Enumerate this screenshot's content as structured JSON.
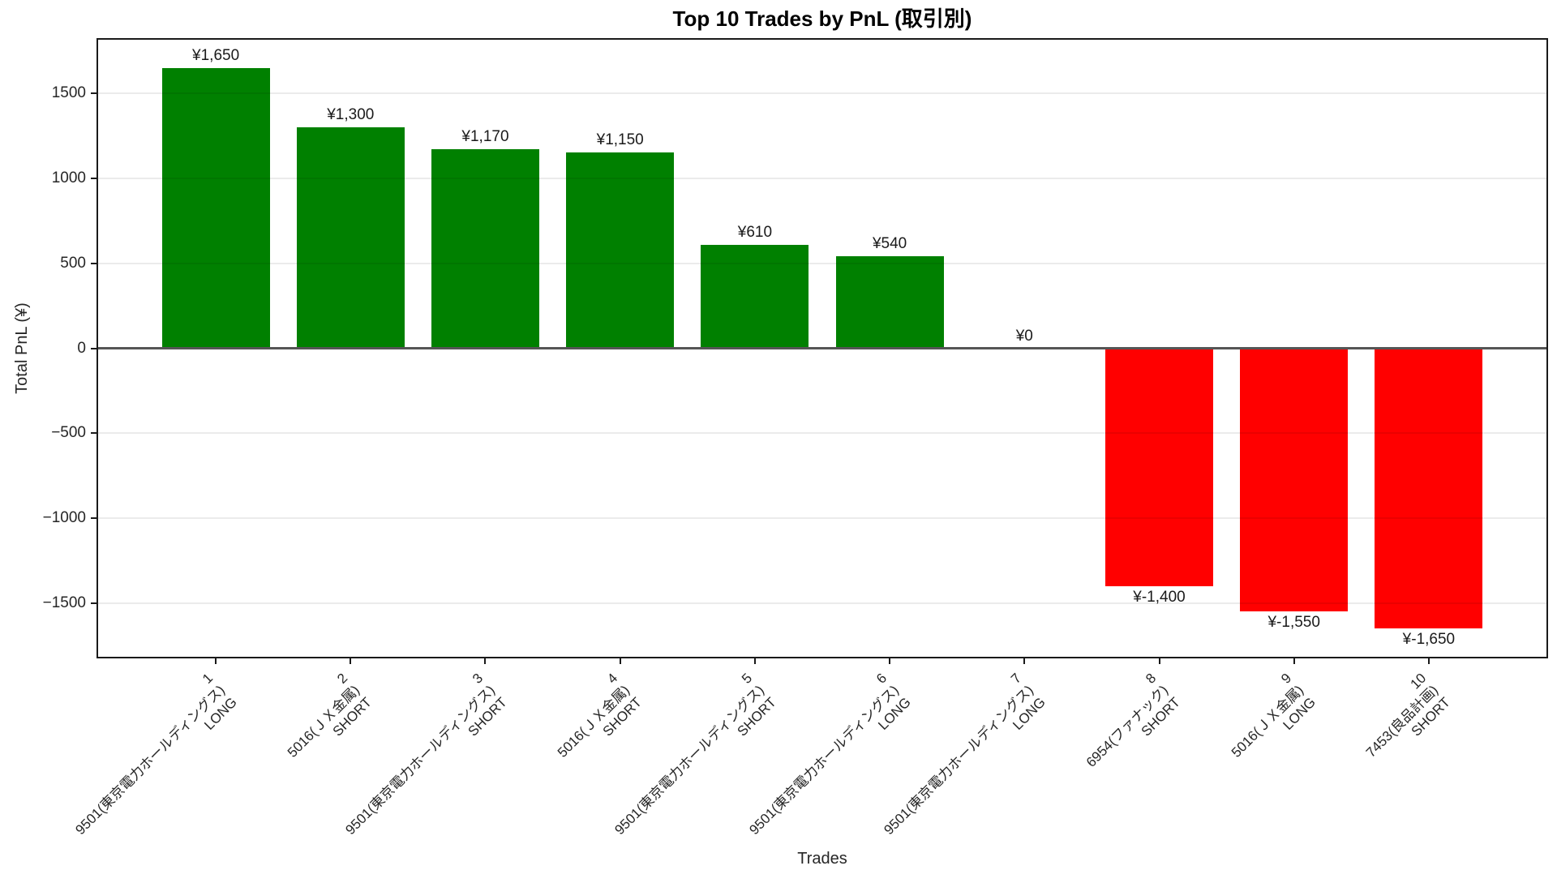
{
  "chart_data": {
    "type": "bar",
    "title": "Top 10 Trades by PnL (取引別)",
    "xlabel": "Trades",
    "ylabel": "Total PnL (¥)",
    "ylim": [
      -1815,
      1815
    ],
    "yticks": [
      1500,
      1000,
      500,
      0,
      -500,
      -1000,
      -1500
    ],
    "grid": true,
    "legend": "none",
    "colors": {
      "positive_bar": "#008000",
      "negative_bar": "#ff0000",
      "zero_line": "#555555",
      "spine": "#1a1a1a"
    },
    "categories": [
      "1\n9501(東京電力ホールディングス)\nLONG",
      "2\n5016(ＪＸ金属)\nSHORT",
      "3\n9501(東京電力ホールディングス)\nSHORT",
      "4\n5016(ＪＸ金属)\nSHORT",
      "5\n9501(東京電力ホールディングス)\nSHORT",
      "6\n9501(東京電力ホールディングス)\nLONG",
      "7\n9501(東京電力ホールディングス)\nLONG",
      "8\n6954(ファナック)\nSHORT",
      "9\n5016(ＪＸ金属)\nLONG",
      "10\n7453(良品計画)\nSHORT"
    ],
    "bars": [
      {
        "rank": "1",
        "name": "9501(東京電力ホールディングス)",
        "side": "LONG",
        "value": 1650,
        "label": "¥1,650"
      },
      {
        "rank": "2",
        "name": "5016(ＪＸ金属)",
        "side": "SHORT",
        "value": 1300,
        "label": "¥1,300"
      },
      {
        "rank": "3",
        "name": "9501(東京電力ホールディングス)",
        "side": "SHORT",
        "value": 1170,
        "label": "¥1,170"
      },
      {
        "rank": "4",
        "name": "5016(ＪＸ金属)",
        "side": "SHORT",
        "value": 1150,
        "label": "¥1,150"
      },
      {
        "rank": "5",
        "name": "9501(東京電力ホールディングス)",
        "side": "SHORT",
        "value": 610,
        "label": "¥610"
      },
      {
        "rank": "6",
        "name": "9501(東京電力ホールディングス)",
        "side": "LONG",
        "value": 540,
        "label": "¥540"
      },
      {
        "rank": "7",
        "name": "9501(東京電力ホールディングス)",
        "side": "LONG",
        "value": 0,
        "label": "¥0"
      },
      {
        "rank": "8",
        "name": "6954(ファナック)",
        "side": "SHORT",
        "value": -1400,
        "label": "¥-1,400"
      },
      {
        "rank": "9",
        "name": "5016(ＪＸ金属)",
        "side": "LONG",
        "value": -1550,
        "label": "¥-1,550"
      },
      {
        "rank": "10",
        "name": "7453(良品計画)",
        "side": "SHORT",
        "value": -1650,
        "label": "¥-1,650"
      }
    ]
  }
}
